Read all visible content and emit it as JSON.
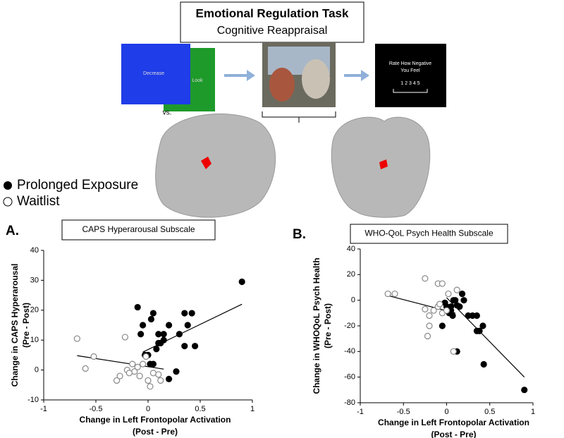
{
  "header": {
    "title": "Emotional Regulation Task",
    "subtitle": "Cognitive Reappraisal"
  },
  "stimuli": {
    "decrease": "Decrease",
    "look": "Look",
    "vs": "vs.",
    "rate_line1": "Rate How Negative",
    "rate_line2": "You Feel",
    "scale": "1  2  3  4  5"
  },
  "chart_data": [
    {
      "type": "scatter",
      "panel": "A.",
      "title": "CAPS Hyperarousal Subscale",
      "xlabel": [
        "Change in Left Frontopolar Activation",
        "(Post - Pre)"
      ],
      "ylabel": [
        "Change in CAPS Hyperarousal",
        "(Pre - Post)"
      ],
      "xlim": [
        -1,
        1
      ],
      "xticks": [
        -1,
        -0.5,
        0,
        0.5,
        1
      ],
      "ylim": [
        -10,
        40
      ],
      "yticks": [
        -10,
        0,
        10,
        20,
        30,
        40
      ],
      "series": [
        {
          "name": "Prolonged Exposure",
          "color": "#000000",
          "filled": true,
          "x": [
            -0.1,
            -0.05,
            0.05,
            0.03,
            0.1,
            0.15,
            -0.07,
            0.2,
            0.35,
            0.42,
            0.38,
            0.45,
            0.3,
            0.1,
            0.12,
            0.08,
            0.15,
            -0.03,
            0,
            0.02,
            0.05,
            0.2,
            0.27,
            0.9,
            0.35
          ],
          "values": [
            21,
            15,
            19,
            17,
            12,
            12,
            12,
            15,
            19,
            19,
            15,
            8,
            12,
            9,
            9,
            7,
            10,
            5,
            5,
            2,
            2,
            -3,
            -0.5,
            29.5,
            8
          ],
          "trend": {
            "x": [
              -0.05,
              0.9
            ],
            "values": [
              6,
              22
            ]
          }
        },
        {
          "name": "Waitlist",
          "color": "#888888",
          "filled": false,
          "x": [
            -0.68,
            -0.6,
            -0.52,
            -0.3,
            -0.27,
            -0.22,
            -0.2,
            -0.15,
            -0.1,
            -0.13,
            -0.18,
            -0.08,
            -0.05,
            0,
            0.02,
            0.05,
            0.1,
            0.12,
            -0.02
          ],
          "values": [
            10.5,
            0.5,
            4.5,
            -3.5,
            -2,
            11,
            0,
            2,
            1,
            -0.5,
            -1,
            -2,
            2,
            -3.5,
            -5.5,
            -1,
            -1.5,
            -3.5,
            4.5
          ],
          "trend": {
            "x": [
              -0.68,
              0.15
            ],
            "values": [
              4.8,
              0.3
            ]
          }
        }
      ]
    },
    {
      "type": "scatter",
      "panel": "B.",
      "title": "WHO-QoL Psych Health Subscale",
      "xlabel": [
        "Change in Left Frontopolar Activation",
        "(Post - Pre)"
      ],
      "ylabel": [
        "Change in WHOQoL Psych Health",
        "(Pre - Post)"
      ],
      "xlim": [
        -1,
        1
      ],
      "xticks": [
        -1,
        -0.5,
        0,
        0.5,
        1
      ],
      "ylim": [
        -80,
        40
      ],
      "yticks": [
        -80,
        -60,
        -40,
        -20,
        0,
        20,
        40
      ],
      "series": [
        {
          "color": "#000000",
          "filled": true,
          "x": [
            0.02,
            0.05,
            0.08,
            0.1,
            0.12,
            0.07,
            0.15,
            0.18,
            0.2,
            0.25,
            0.3,
            0.35,
            0.38,
            0.42,
            0.43,
            0.35,
            0,
            0.03,
            -0.05,
            0.12,
            0.9,
            0.05,
            -0.02
          ],
          "values": [
            -7,
            -8,
            0,
            0,
            -4,
            -12,
            -5,
            5,
            0,
            -12,
            -12,
            -24,
            -24,
            -20,
            -50,
            -12,
            -5,
            -10,
            -20,
            -40,
            -70,
            -5,
            -2
          ],
          "trend": {
            "x": [
              0,
              0.9
            ],
            "values": [
              2,
              -60
            ]
          }
        },
        {
          "color": "#888888",
          "filled": false,
          "x": [
            -0.68,
            -0.6,
            -0.25,
            -0.1,
            -0.05,
            0.12,
            0.02,
            -0.25,
            -0.2,
            -0.15,
            -0.2,
            -0.22,
            -0.1,
            -0.05,
            0.08,
            -0.08,
            0
          ],
          "values": [
            5,
            5,
            17,
            13,
            13,
            8,
            5,
            -7,
            -12,
            -8,
            -20,
            -28,
            -5,
            -10,
            -40,
            -3,
            -8
          ],
          "trend": {
            "x": [
              -0.7,
              0.1
            ],
            "values": [
              4,
              -10
            ]
          }
        }
      ]
    }
  ]
}
